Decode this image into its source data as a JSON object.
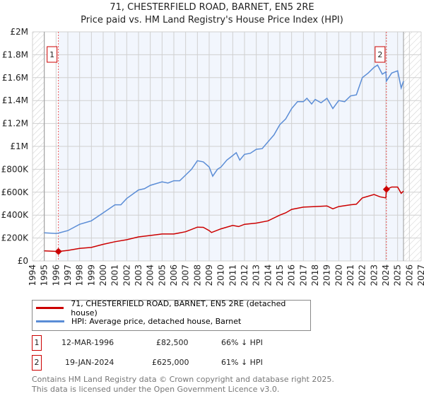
{
  "chart_data": {
    "type": "line",
    "title": "71, CHESTERFIELD ROAD, BARNET, EN5 2RE",
    "subtitle": "Price paid vs. HM Land Registry's House Price Index (HPI)",
    "xlim": [
      1994,
      2027
    ],
    "ylim": [
      0,
      2000000
    ],
    "x_ticks": [
      "1994",
      "1995",
      "1996",
      "1997",
      "1998",
      "1999",
      "2000",
      "2001",
      "2002",
      "2003",
      "2004",
      "2005",
      "2006",
      "2007",
      "2008",
      "2009",
      "2010",
      "2011",
      "2012",
      "2013",
      "2014",
      "2015",
      "2016",
      "2017",
      "2018",
      "2019",
      "2020",
      "2021",
      "2022",
      "2023",
      "2024",
      "2025",
      "2026",
      "2027"
    ],
    "y_ticks": [
      {
        "v": 0,
        "l": "£0"
      },
      {
        "v": 200000,
        "l": "£200K"
      },
      {
        "v": 400000,
        "l": "£400K"
      },
      {
        "v": 600000,
        "l": "£600K"
      },
      {
        "v": 800000,
        "l": "£800K"
      },
      {
        "v": 1000000,
        "l": "£1M"
      },
      {
        "v": 1200000,
        "l": "£1.2M"
      },
      {
        "v": 1400000,
        "l": "£1.4M"
      },
      {
        "v": 1600000,
        "l": "£1.6M"
      },
      {
        "v": 1800000,
        "l": "£1.8M"
      },
      {
        "v": 2000000,
        "l": "£2M"
      }
    ],
    "grid": true,
    "hatched_ranges": [
      [
        1994,
        1995
      ],
      [
        2025.5,
        2027
      ]
    ],
    "shaded_range": [
      1996.2,
      2025.5
    ],
    "series": [
      {
        "name": "71, CHESTERFIELD ROAD, BARNET, EN5 2RE (detached house)",
        "color": "#cc0000",
        "x": [
          1995,
          1996.2,
          1997,
          1998,
          1999,
          2000,
          2001,
          2002,
          2003,
          2004,
          2005,
          2006,
          2007,
          2008,
          2008.5,
          2009,
          2009.2,
          2010,
          2011,
          2011.5,
          2012,
          2013,
          2014,
          2015,
          2015.5,
          2016,
          2017,
          2018,
          2019,
          2019.5,
          2020,
          2021,
          2021.5,
          2022,
          2022.5,
          2023,
          2023.5,
          2024.0,
          2024.05,
          2024.5,
          2025,
          2025.3,
          2025.5
        ],
        "y": [
          88000,
          82500,
          92000,
          110000,
          118000,
          145000,
          168000,
          185000,
          210000,
          222000,
          235000,
          235000,
          255000,
          295000,
          293000,
          265000,
          248000,
          280000,
          310000,
          300000,
          320000,
          330000,
          350000,
          400000,
          420000,
          450000,
          470000,
          475000,
          480000,
          455000,
          475000,
          490000,
          495000,
          550000,
          565000,
          580000,
          560000,
          550000,
          625000,
          645000,
          645000,
          590000,
          610000
        ]
      },
      {
        "name": "HPI: Average price, detached house, Barnet",
        "color": "#5b8dd6",
        "x": [
          1995,
          1996,
          1996.2,
          1997,
          1998,
          1999,
          2000,
          2001,
          2001.5,
          2002,
          2003,
          2003.5,
          2004,
          2005,
          2005.5,
          2006,
          2006.5,
          2007,
          2007.5,
          2008,
          2008.5,
          2009,
          2009.3,
          2009.7,
          2010,
          2010.5,
          2011,
          2011.3,
          2011.6,
          2012,
          2012.5,
          2013,
          2013.5,
          2014,
          2014.5,
          2015,
          2015.5,
          2016,
          2016.5,
          2017,
          2017.3,
          2017.7,
          2018,
          2018.5,
          2019,
          2019.5,
          2020,
          2020.5,
          2021,
          2021.5,
          2022,
          2022.5,
          2023,
          2023.3,
          2023.7,
          2024,
          2024.05,
          2024.5,
          2025,
          2025.3,
          2025.5
        ],
        "y": [
          245000,
          240000,
          243000,
          265000,
          320000,
          350000,
          420000,
          490000,
          490000,
          545000,
          620000,
          630000,
          660000,
          690000,
          680000,
          700000,
          700000,
          750000,
          800000,
          875000,
          865000,
          820000,
          740000,
          800000,
          820000,
          880000,
          920000,
          945000,
          880000,
          930000,
          940000,
          975000,
          980000,
          1040000,
          1100000,
          1190000,
          1240000,
          1330000,
          1390000,
          1390000,
          1420000,
          1370000,
          1410000,
          1380000,
          1420000,
          1330000,
          1400000,
          1390000,
          1440000,
          1450000,
          1600000,
          1640000,
          1690000,
          1710000,
          1630000,
          1650000,
          1570000,
          1640000,
          1660000,
          1510000,
          1570000
        ]
      }
    ],
    "annotations": [
      {
        "label": "1",
        "x": 1996.2,
        "y": 82500
      },
      {
        "label": "2",
        "x": 2024.05,
        "y": 625000
      }
    ]
  },
  "sales": [
    {
      "num": "1",
      "date": "12-MAR-1996",
      "price": "£82,500",
      "hpi": "66% ↓ HPI"
    },
    {
      "num": "2",
      "date": "19-JAN-2024",
      "price": "£625,000",
      "hpi": "61% ↓ HPI"
    }
  ],
  "footer": {
    "line1": "Contains HM Land Registry data © Crown copyright and database right 2025.",
    "line2": "This data is licensed under the Open Government Licence v3.0."
  }
}
